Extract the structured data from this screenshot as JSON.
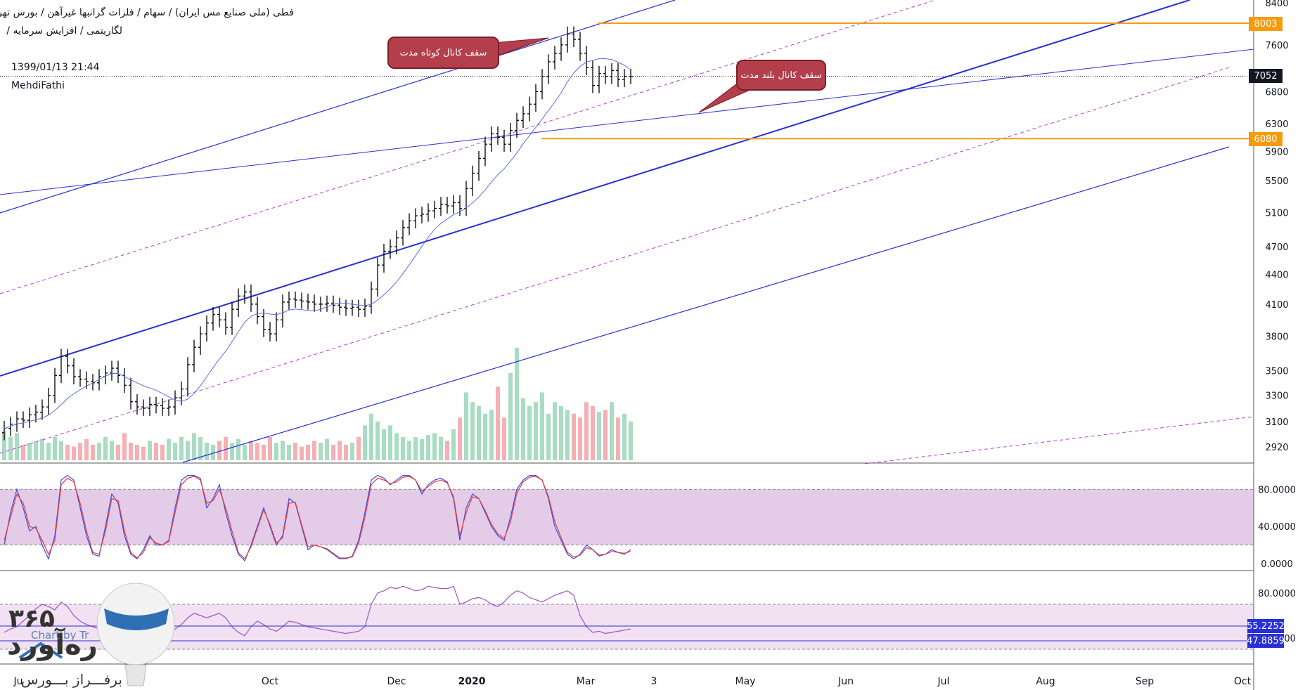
{
  "header": {
    "line1": "فطی (ملی صنایع مس ایران) / سهام / فلزات گرانبها غیرآهن / بورس تهران",
    "line2": "لگاریتمی / افزایش سرمایه /",
    "timestamp": "1399/01/13 21:44",
    "author": "MehdiFathi"
  },
  "annotations": {
    "short_channel_top": "سقف کانال کوتاه مدت",
    "long_channel_top": "سقف کانال بلند مدت"
  },
  "price_levels": {
    "resistance": "8003",
    "current": "7052",
    "support": "6080"
  },
  "stoch_levels": {
    "upper": "55.2252",
    "lower": "47.8859"
  },
  "logo": {
    "numeral": "۳۶۵",
    "name": "ره‌آورد",
    "subtitle": "برفـــراز بـــورس",
    "latin": "Chart by Tr"
  },
  "colors": {
    "candle": "#000000",
    "ma": "#5b6fe0",
    "channel": "#2930d4",
    "dashed": "#b63ed9",
    "level": "#f59b0d",
    "vol_up": "#a8dcc3",
    "vol_down": "#f4b0b4",
    "stoch_band": "#e4cce8",
    "rsi_band": "#f1e1f3"
  },
  "chart_data": {
    "type": "candlestick",
    "y_scale": "log",
    "ylim": [
      2800,
      8500
    ],
    "y_ticks": [
      "8400",
      "7600",
      "6800",
      "6300",
      "5900",
      "5500",
      "5100",
      "4700",
      "4400",
      "4100",
      "3800",
      "3500",
      "3300",
      "3100",
      "2920"
    ],
    "x_ticks": [
      "Ju",
      "Oct",
      "Dec",
      "2020",
      "Mar",
      "3",
      "May",
      "Jun",
      "Jul",
      "Aug",
      "Sep",
      "Oct"
    ],
    "closes": [
      3050,
      3080,
      3120,
      3110,
      3150,
      3170,
      3210,
      3300,
      3460,
      3620,
      3540,
      3450,
      3430,
      3410,
      3400,
      3450,
      3480,
      3520,
      3460,
      3380,
      3250,
      3210,
      3200,
      3230,
      3220,
      3200,
      3210,
      3280,
      3350,
      3550,
      3700,
      3820,
      3920,
      4000,
      3950,
      3880,
      4050,
      4180,
      4220,
      4100,
      3980,
      3860,
      3820,
      3950,
      4120,
      4150,
      4140,
      4130,
      4120,
      4100,
      4100,
      4110,
      4090,
      4070,
      4060,
      4070,
      4050,
      4080,
      4250,
      4500,
      4650,
      4700,
      4800,
      4920,
      5000,
      5060,
      5080,
      5120,
      5150,
      5200,
      5180,
      5220,
      5150,
      5400,
      5600,
      5800,
      6000,
      6150,
      6100,
      6000,
      6200,
      6350,
      6450,
      6600,
      6800,
      7050,
      7300,
      7450,
      7600,
      7800,
      7700,
      7450,
      7200,
      6900,
      7100,
      7050,
      7150,
      7000,
      7050,
      7052
    ],
    "volumes": [
      15,
      12,
      14,
      8,
      9,
      10,
      11,
      9,
      12,
      10,
      8,
      7,
      9,
      11,
      8,
      9,
      12,
      10,
      8,
      14,
      9,
      8,
      7,
      10,
      9,
      8,
      11,
      9,
      12,
      10,
      14,
      12,
      9,
      8,
      10,
      12,
      9,
      11,
      8,
      10,
      9,
      8,
      12,
      9,
      10,
      8,
      9,
      7,
      8,
      10,
      9,
      11,
      8,
      10,
      8,
      9,
      12,
      18,
      24,
      20,
      16,
      18,
      14,
      12,
      10,
      12,
      11,
      13,
      14,
      12,
      10,
      16,
      22,
      35,
      30,
      28,
      24,
      26,
      38,
      22,
      45,
      58,
      32,
      28,
      30,
      35,
      24,
      30,
      28,
      26,
      24,
      22,
      30,
      28,
      25,
      26,
      30,
      22,
      24,
      20
    ],
    "stoch_k": [
      20,
      55,
      80,
      60,
      35,
      40,
      20,
      5,
      30,
      90,
      95,
      90,
      60,
      30,
      10,
      8,
      40,
      75,
      65,
      30,
      10,
      5,
      15,
      30,
      20,
      20,
      25,
      60,
      90,
      95,
      95,
      92,
      60,
      70,
      85,
      55,
      30,
      10,
      3,
      20,
      40,
      60,
      40,
      20,
      30,
      70,
      65,
      40,
      15,
      20,
      18,
      15,
      10,
      5,
      5,
      8,
      25,
      55,
      90,
      95,
      92,
      85,
      90,
      95,
      95,
      90,
      75,
      85,
      90,
      92,
      88,
      70,
      25,
      60,
      75,
      70,
      55,
      40,
      30,
      25,
      50,
      80,
      90,
      95,
      95,
      90,
      70,
      40,
      25,
      10,
      5,
      10,
      20,
      15,
      8,
      10,
      15,
      12,
      10,
      15
    ],
    "stoch_d": [
      25,
      50,
      75,
      65,
      40,
      38,
      25,
      10,
      25,
      85,
      92,
      88,
      65,
      35,
      12,
      10,
      35,
      70,
      68,
      35,
      12,
      6,
      12,
      28,
      22,
      20,
      24,
      55,
      85,
      92,
      94,
      90,
      65,
      68,
      80,
      60,
      35,
      12,
      5,
      18,
      38,
      58,
      42,
      22,
      28,
      65,
      66,
      42,
      18,
      20,
      18,
      16,
      11,
      6,
      6,
      7,
      22,
      50,
      85,
      92,
      90,
      86,
      88,
      93,
      94,
      90,
      78,
      83,
      88,
      90,
      87,
      72,
      30,
      55,
      72,
      70,
      57,
      42,
      32,
      27,
      45,
      76,
      88,
      93,
      94,
      90,
      72,
      45,
      28,
      12,
      7,
      9,
      17,
      15,
      9,
      10,
      13,
      12,
      11,
      13
    ],
    "stoch_ticks": [
      "80.0000",
      "40.0000",
      "0.0000"
    ],
    "rsi_ticks": [
      "80.0000",
      "40.0000"
    ],
    "rsi": [
      45,
      48,
      50,
      55,
      60,
      66,
      70,
      68,
      65,
      72,
      68,
      60,
      55,
      52,
      50,
      48,
      45,
      42,
      40,
      38,
      34,
      35,
      38,
      40,
      42,
      44,
      46,
      48,
      52,
      58,
      62,
      60,
      58,
      60,
      62,
      58,
      50,
      45,
      42,
      50,
      55,
      52,
      48,
      46,
      50,
      55,
      54,
      52,
      50,
      49,
      48,
      47,
      46,
      45,
      44,
      45,
      46,
      50,
      70,
      80,
      82,
      85,
      84,
      86,
      84,
      82,
      83,
      86,
      85,
      84,
      84,
      86,
      70,
      72,
      75,
      76,
      74,
      70,
      68,
      72,
      78,
      82,
      80,
      76,
      74,
      72,
      75,
      78,
      80,
      82,
      78,
      60,
      50,
      45,
      46,
      44,
      45,
      46,
      47,
      48
    ]
  }
}
